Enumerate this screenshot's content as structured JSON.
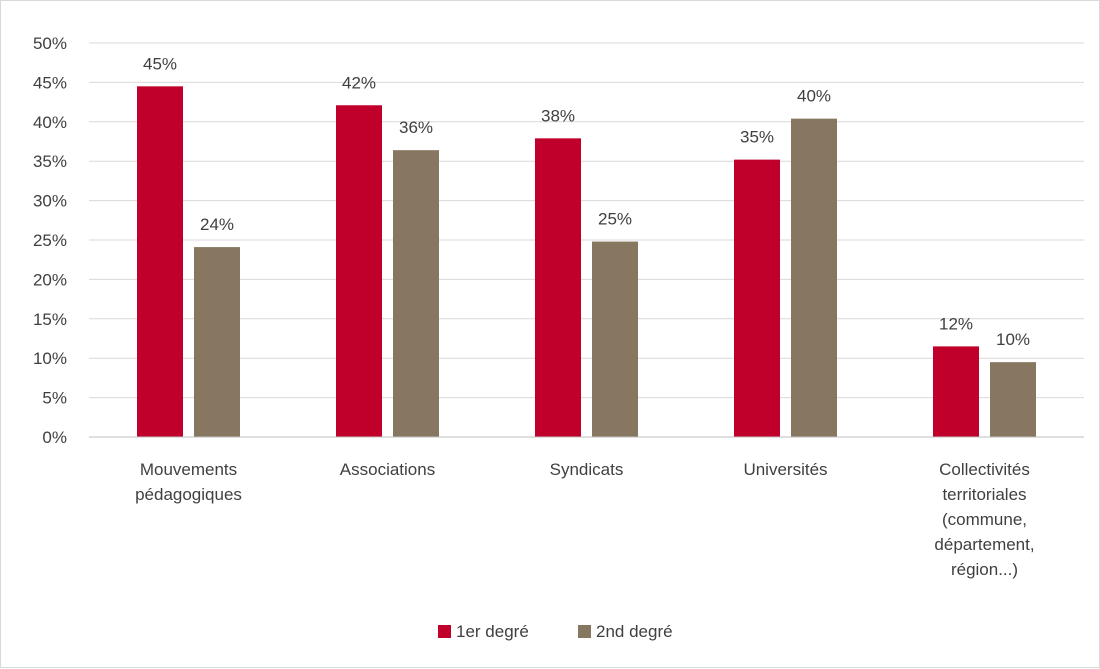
{
  "chart_data": {
    "type": "bar",
    "title": "",
    "xlabel": "",
    "ylabel": "",
    "ylim": [
      0,
      50
    ],
    "y_ticks": [
      0,
      5,
      10,
      15,
      20,
      25,
      30,
      35,
      40,
      45,
      50
    ],
    "y_tick_suffix": "%",
    "grid": true,
    "legend_position": "bottom",
    "categories": [
      [
        "Mouvements",
        "pédagogiques"
      ],
      [
        "Associations"
      ],
      [
        "Syndicats"
      ],
      [
        "Universités"
      ],
      [
        "Collectivités",
        "territoriales",
        "(commune,",
        "département,",
        "région...)"
      ]
    ],
    "series": [
      {
        "name": "1er degré",
        "color": "#c0002a",
        "values": [
          44.5,
          42.1,
          37.9,
          35.2,
          11.5
        ],
        "labels": [
          "45%",
          "42%",
          "38%",
          "35%",
          "12%"
        ]
      },
      {
        "name": "2nd degré",
        "color": "#877761",
        "values": [
          24.1,
          36.4,
          24.8,
          40.4,
          9.5
        ],
        "labels": [
          "24%",
          "36%",
          "25%",
          "40%",
          "10%"
        ]
      }
    ]
  }
}
